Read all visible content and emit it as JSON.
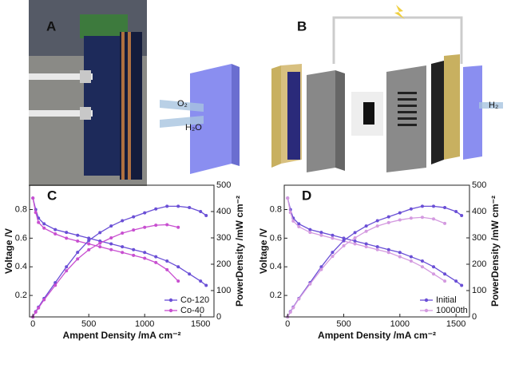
{
  "panels": {
    "a": "A",
    "b": "B"
  },
  "diagram": {
    "o2": "O₂",
    "h2o": "H₂O",
    "h2": "H₂"
  },
  "chart_data": [
    {
      "type": "line",
      "panel": "C",
      "xlabel": "Ampent Density /mA cm⁻²",
      "ylabel": "Voltage /V",
      "y2label": "PowerDensity /mW cm⁻²",
      "x": [
        0,
        25,
        50,
        100,
        200,
        300,
        400,
        500,
        600,
        700,
        800,
        900,
        1000,
        1100,
        1200,
        1300,
        1400,
        1500,
        1550
      ],
      "xlim": [
        -30,
        1620
      ],
      "xticks": [
        0,
        500,
        1000,
        1500
      ],
      "ylim": [
        0.05,
        0.97
      ],
      "yticks": [
        0.2,
        0.4,
        0.6,
        0.8
      ],
      "y2lim": [
        0,
        500
      ],
      "y2ticks": [
        0,
        100,
        200,
        300,
        400,
        500
      ],
      "legend": "lower right",
      "series": [
        {
          "name": "Co-120",
          "color": "#6a4fd6",
          "values": [
            0.88,
            0.8,
            0.74,
            0.7,
            0.66,
            0.64,
            0.62,
            0.6,
            0.58,
            0.56,
            0.54,
            0.52,
            0.5,
            0.47,
            0.44,
            0.4,
            0.35,
            0.3,
            0.27
          ]
        },
        {
          "name": "Co-40",
          "color": "#c84fd0",
          "values": [
            0.88,
            0.78,
            0.71,
            0.67,
            0.63,
            0.6,
            0.58,
            0.56,
            0.54,
            0.52,
            0.5,
            0.48,
            0.46,
            0.43,
            0.38,
            0.3,
            null,
            null,
            null
          ]
        },
        {
          "color": "#6a4fd6",
          "axis": "y2",
          "values": [
            0,
            20,
            37,
            70,
            130,
            190,
            245,
            290,
            320,
            345,
            365,
            380,
            395,
            410,
            420,
            420,
            415,
            400,
            385
          ]
        },
        {
          "color": "#c84fd0",
          "axis": "y2",
          "values": [
            0,
            18,
            34,
            65,
            120,
            175,
            220,
            255,
            280,
            300,
            318,
            330,
            340,
            348,
            350,
            340,
            null,
            null,
            null
          ]
        }
      ]
    },
    {
      "type": "line",
      "panel": "D",
      "xlabel": "Ampent Density /mA cm⁻²",
      "ylabel": "Voltage /V",
      "y2label": "PowerDensity /mW cm⁻²",
      "x": [
        0,
        25,
        50,
        100,
        200,
        300,
        400,
        500,
        600,
        700,
        800,
        900,
        1000,
        1100,
        1200,
        1300,
        1400,
        1500,
        1550
      ],
      "xlim": [
        -30,
        1620
      ],
      "xticks": [
        0,
        500,
        1000,
        1500
      ],
      "ylim": [
        0.05,
        0.97
      ],
      "yticks": [
        0.2,
        0.4,
        0.6,
        0.8
      ],
      "y2lim": [
        0,
        500
      ],
      "y2ticks": [
        0,
        100,
        200,
        300,
        400,
        500
      ],
      "legend": "lower right",
      "series": [
        {
          "name": "Initial",
          "color": "#6a4fd6",
          "values": [
            0.88,
            0.8,
            0.74,
            0.7,
            0.66,
            0.64,
            0.62,
            0.6,
            0.58,
            0.56,
            0.54,
            0.52,
            0.5,
            0.47,
            0.44,
            0.4,
            0.35,
            0.3,
            0.27
          ]
        },
        {
          "name": "10000th",
          "color": "#d49ae0",
          "values": [
            0.88,
            0.78,
            0.72,
            0.68,
            0.64,
            0.62,
            0.6,
            0.58,
            0.56,
            0.54,
            0.52,
            0.5,
            0.47,
            0.44,
            0.4,
            0.35,
            0.3,
            null,
            null
          ]
        },
        {
          "color": "#6a4fd6",
          "axis": "y2",
          "values": [
            0,
            20,
            37,
            70,
            130,
            190,
            245,
            290,
            320,
            345,
            365,
            380,
            395,
            410,
            420,
            420,
            415,
            400,
            385
          ]
        },
        {
          "color": "#d49ae0",
          "axis": "y2",
          "values": [
            0,
            18,
            35,
            68,
            125,
            180,
            230,
            270,
            300,
            325,
            345,
            358,
            368,
            375,
            378,
            372,
            355,
            null,
            null
          ]
        }
      ]
    }
  ]
}
